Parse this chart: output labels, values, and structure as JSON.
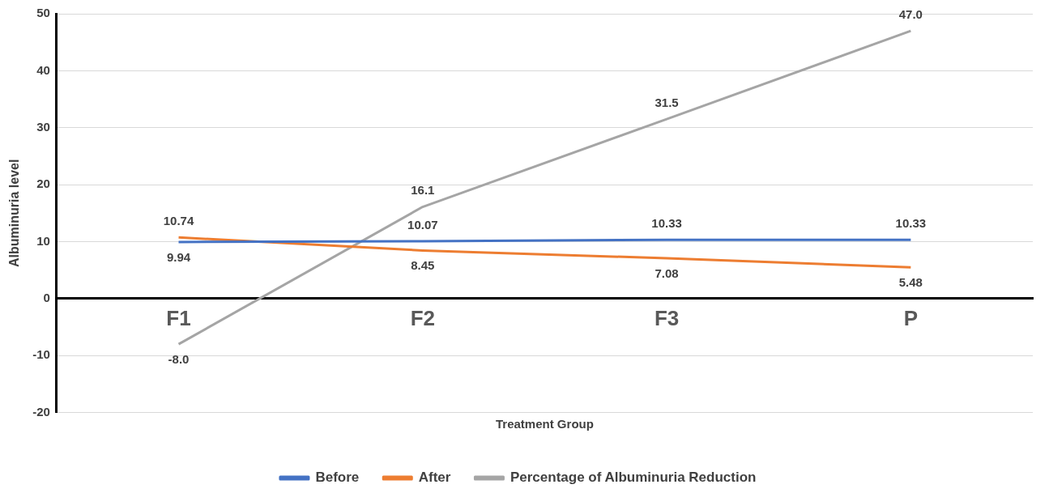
{
  "chart_data": {
    "type": "line",
    "xlabel": "Treatment Group",
    "ylabel": "Albuminuria level",
    "categories": [
      "F1",
      "F2",
      "F3",
      "P"
    ],
    "series": [
      {
        "name": "Before",
        "color": "#4472c4",
        "values": [
          9.94,
          10.07,
          10.33,
          10.33
        ],
        "value_labels": [
          "9.94",
          "10.07",
          "10.33",
          "10.33"
        ]
      },
      {
        "name": "After",
        "color": "#ed7d31",
        "values": [
          10.74,
          8.45,
          7.08,
          5.48
        ],
        "value_labels": [
          "10.74",
          "8.45",
          "7.08",
          "5.48"
        ]
      },
      {
        "name": "Percentage of Albuminuria Reduction",
        "color": "#a5a5a5",
        "values": [
          -8.0,
          16.1,
          31.5,
          47.0
        ],
        "value_labels": [
          "-8.0",
          "16.1",
          "31.5",
          "47.0"
        ]
      }
    ],
    "ylim": [
      -20,
      50
    ],
    "yticks": [
      -20,
      -10,
      0,
      10,
      20,
      30,
      40,
      50
    ],
    "grid": "y",
    "legend": "bottom",
    "marker": "none",
    "line_style": "solid"
  }
}
